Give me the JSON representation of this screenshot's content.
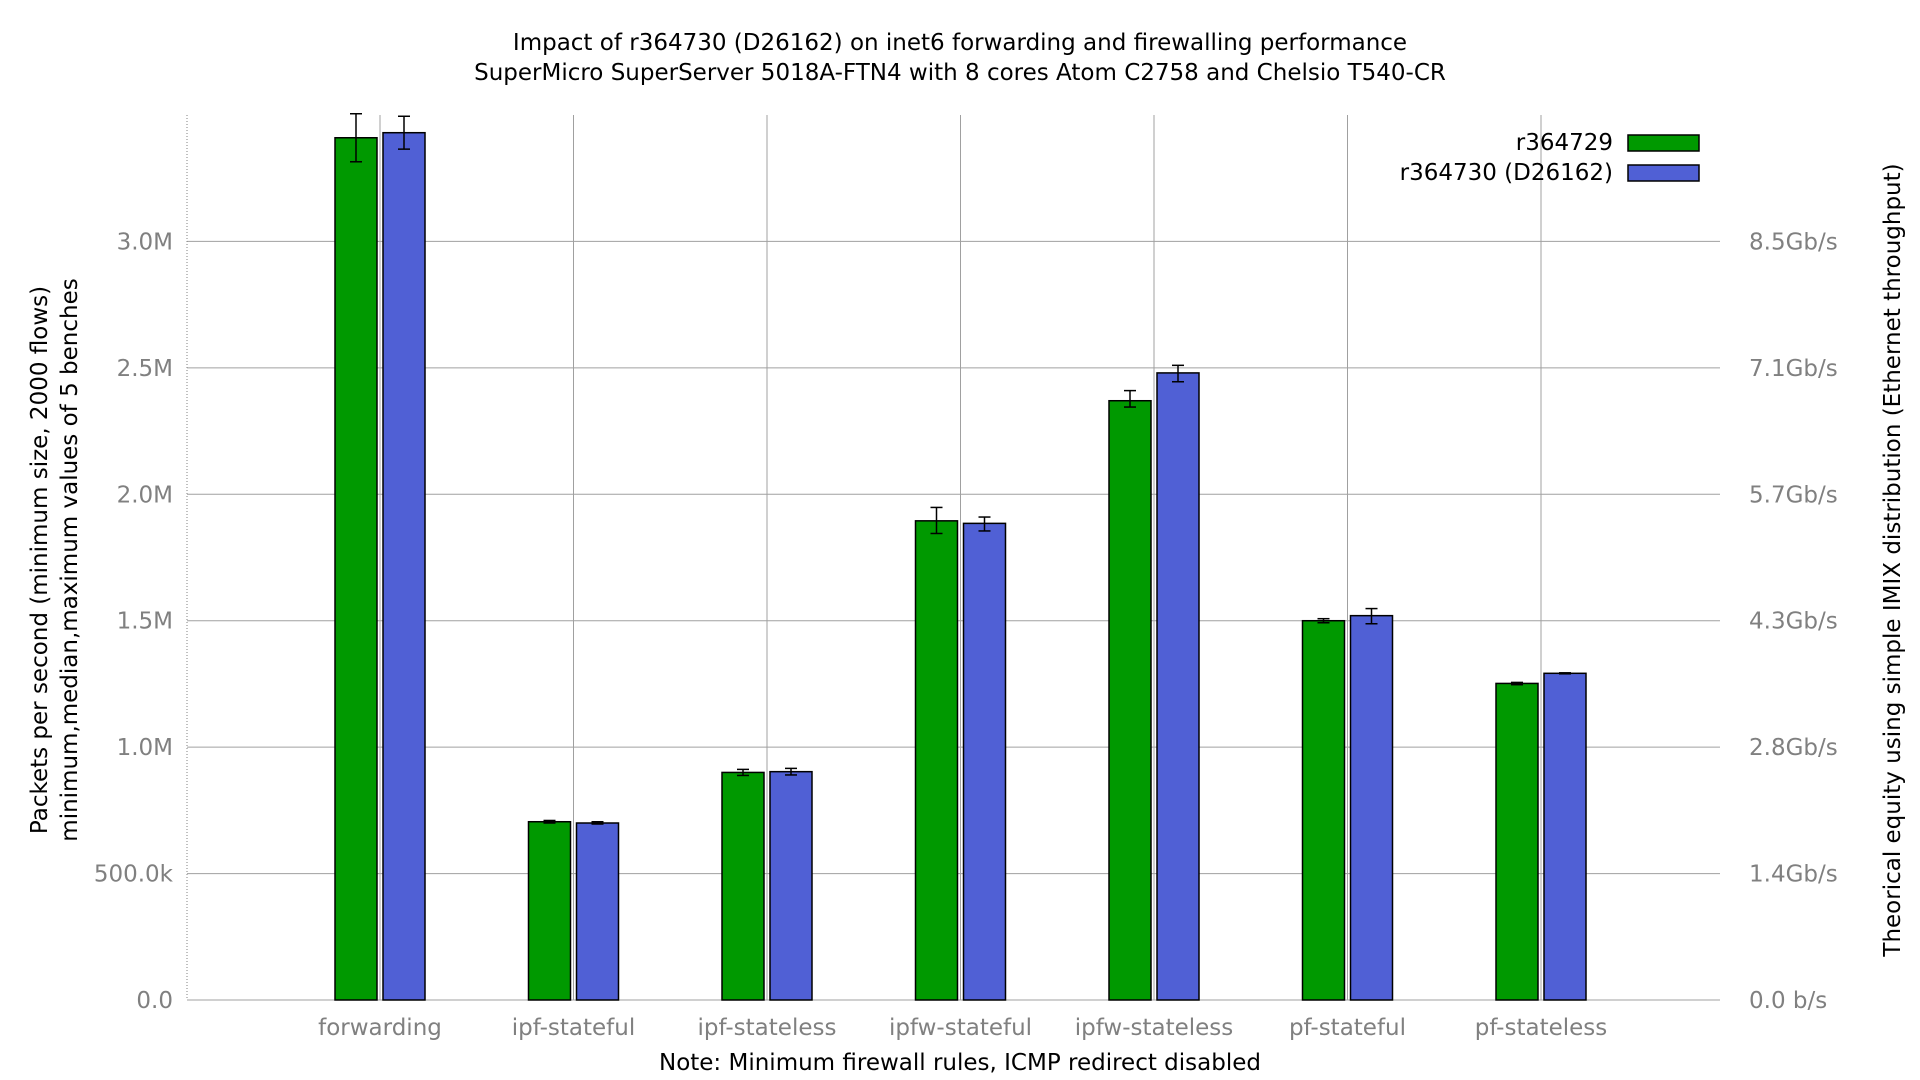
{
  "chart_data": {
    "type": "bar",
    "title": "Impact of r364730 (D26162) on inet6 forwarding and firewalling performance",
    "subtitle": "SuperMicro SuperServer 5018A-FTN4 with 8 cores Atom C2758 and Chelsio T540-CR",
    "xlabel": "Note: Minimum firewall rules, ICMP redirect disabled",
    "ylabel_line1": "Packets per second (minimum size, 2000 flows)",
    "ylabel_line2": "minimum,median,maximum values of 5 benches",
    "y2label": "Theorical equity using simple IMIX distribution (Ethernet throughput)",
    "ylim": [
      0,
      3500000
    ],
    "y_ticks": [
      {
        "value": 0,
        "label": "0.0"
      },
      {
        "value": 500000,
        "label": "500.0k"
      },
      {
        "value": 1000000,
        "label": "1.0M"
      },
      {
        "value": 1500000,
        "label": "1.5M"
      },
      {
        "value": 2000000,
        "label": "2.0M"
      },
      {
        "value": 2500000,
        "label": "2.5M"
      },
      {
        "value": 3000000,
        "label": "3.0M"
      }
    ],
    "y2_ticks": [
      {
        "value": 0,
        "label": "0.0 b/s"
      },
      {
        "value": 500000,
        "label": "1.4Gb/s"
      },
      {
        "value": 1000000,
        "label": "2.8Gb/s"
      },
      {
        "value": 1500000,
        "label": "4.3Gb/s"
      },
      {
        "value": 2000000,
        "label": "5.7Gb/s"
      },
      {
        "value": 2500000,
        "label": "7.1Gb/s"
      },
      {
        "value": 3000000,
        "label": "8.5Gb/s"
      }
    ],
    "categories": [
      "forwarding",
      "ipf-stateful",
      "ipf-stateless",
      "ipfw-stateful",
      "ipfw-stateless",
      "pf-stateful",
      "pf-stateless"
    ],
    "series": [
      {
        "name": "r364729",
        "color": "#009900",
        "values": [
          3410000,
          705000,
          900000,
          1895000,
          2370000,
          1500000,
          1252000
        ],
        "min": [
          3315000,
          700000,
          888000,
          1845000,
          2345000,
          1492000,
          1247000
        ],
        "max": [
          3505000,
          710000,
          912000,
          1948000,
          2410000,
          1508000,
          1256000
        ]
      },
      {
        "name": "r364730 (D26162)",
        "color": "#5060d5",
        "values": [
          3430000,
          700000,
          903000,
          1885000,
          2480000,
          1520000,
          1292000
        ],
        "min": [
          3365000,
          696000,
          890000,
          1855000,
          2445000,
          1488000,
          1290000
        ],
        "max": [
          3495000,
          705000,
          916000,
          1910000,
          2510000,
          1548000,
          1294000
        ]
      }
    ],
    "grid": true,
    "legend_position": "top-right"
  }
}
